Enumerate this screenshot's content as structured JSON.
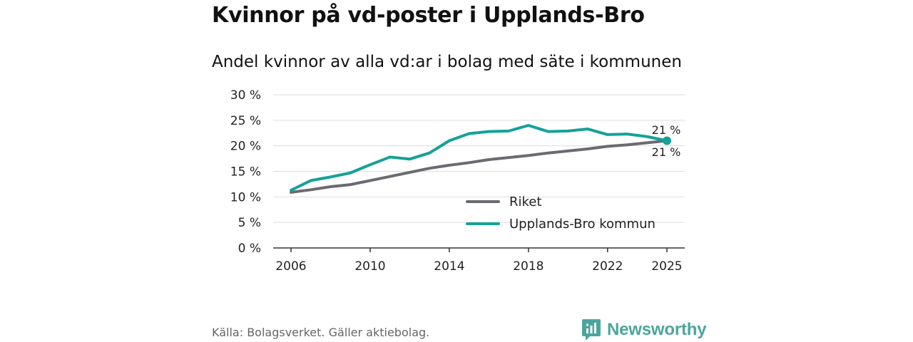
{
  "header": {
    "title": "Kvinnor på vd-poster i Upplands-Bro"
  },
  "footer": {
    "source": "Källa: Bolagsverket. Gäller aktiebolag.",
    "brand": "Newsworthy"
  },
  "colors": {
    "riket": "#6b6a70",
    "kommun": "#14a198",
    "grid": "#dddddd",
    "axis": "#333333",
    "brand": "#4ca59d"
  },
  "chart_data": {
    "type": "line",
    "title": "Andel kvinnor av alla vd:ar i bolag med säte i kommunen",
    "xlabel": "",
    "ylabel": "",
    "x": [
      2006,
      2007,
      2008,
      2009,
      2010,
      2011,
      2012,
      2013,
      2014,
      2015,
      2016,
      2017,
      2018,
      2019,
      2020,
      2021,
      2022,
      2023,
      2024,
      2025
    ],
    "xticks": [
      "2006",
      "2010",
      "2014",
      "2018",
      "2022",
      "2025"
    ],
    "yticks": [
      "0 %",
      "5 %",
      "10 %",
      "15 %",
      "20 %",
      "25 %",
      "30 %"
    ],
    "ylim": [
      0,
      30
    ],
    "grid": true,
    "legend_position": "bottom-right",
    "series": [
      {
        "name": "Riket",
        "color_key": "riket",
        "values": [
          10.9,
          11.4,
          12.0,
          12.4,
          13.2,
          14.0,
          14.8,
          15.6,
          16.2,
          16.7,
          17.3,
          17.7,
          18.1,
          18.6,
          19.0,
          19.4,
          19.9,
          20.2,
          20.6,
          21.0
        ],
        "end_label": "21 %"
      },
      {
        "name": "Upplands-Bro kommun",
        "color_key": "kommun",
        "values": [
          11.3,
          13.2,
          13.9,
          14.7,
          16.3,
          17.8,
          17.4,
          18.6,
          21.0,
          22.4,
          22.8,
          22.9,
          24.0,
          22.8,
          22.9,
          23.3,
          22.2,
          22.3,
          21.8,
          21.0
        ],
        "end_label": "21 %"
      }
    ]
  }
}
